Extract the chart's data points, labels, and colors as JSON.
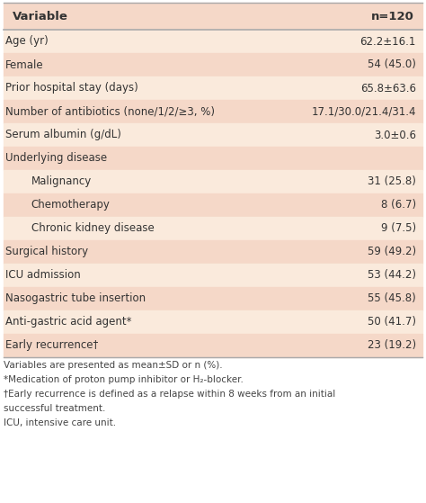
{
  "header_col1": "Variable",
  "header_col2": "n=120",
  "rows": [
    {
      "label": "Age (yr)",
      "value": "62.2±16.1",
      "indent": false,
      "shaded": false
    },
    {
      "label": "Female",
      "value": "54 (45.0)",
      "indent": false,
      "shaded": true
    },
    {
      "label": "Prior hospital stay (days)",
      "value": "65.8±63.6",
      "indent": false,
      "shaded": false
    },
    {
      "label": "Number of antibiotics (none/1/2/≥3, %)",
      "value": "17.1/30.0/21.4/31.4",
      "indent": false,
      "shaded": true
    },
    {
      "label": "Serum albumin (g/dL)",
      "value": "3.0±0.6",
      "indent": false,
      "shaded": false
    },
    {
      "label": "Underlying disease",
      "value": "",
      "indent": false,
      "shaded": true
    },
    {
      "label": "Malignancy",
      "value": "31 (25.8)",
      "indent": true,
      "shaded": false
    },
    {
      "label": "Chemotherapy",
      "value": "8 (6.7)",
      "indent": true,
      "shaded": true
    },
    {
      "label": "Chronic kidney disease",
      "value": "9 (7.5)",
      "indent": true,
      "shaded": false
    },
    {
      "label": "Surgical history",
      "value": "59 (49.2)",
      "indent": false,
      "shaded": true
    },
    {
      "label": "ICU admission",
      "value": "53 (44.2)",
      "indent": false,
      "shaded": false
    },
    {
      "label": "Nasogastric tube insertion",
      "value": "55 (45.8)",
      "indent": false,
      "shaded": true
    },
    {
      "label": "Anti-gastric acid agent*",
      "value": "50 (41.7)",
      "indent": false,
      "shaded": false
    },
    {
      "label": "Early recurrence†",
      "value": "23 (19.2)",
      "indent": false,
      "shaded": true
    }
  ],
  "footnotes": [
    "Variables are presented as mean±SD or n (%).",
    "*Medication of proton pump inhibitor or H₂-blocker.",
    "†Early recurrence is defined as a relapse within 8 weeks from an initial",
    "successful treatment.",
    "ICU, intensive care unit."
  ],
  "bg_color": "#faeadc",
  "shaded_color": "#f5d8c8",
  "header_bg": "#f5d8c8",
  "text_color": "#333333",
  "border_color": "#aaaaaa",
  "col_split": 0.595,
  "fig_width": 4.74,
  "fig_height": 5.59,
  "dpi": 100,
  "header_fontsize": 9.5,
  "row_fontsize": 8.5,
  "footnote_fontsize": 7.5
}
